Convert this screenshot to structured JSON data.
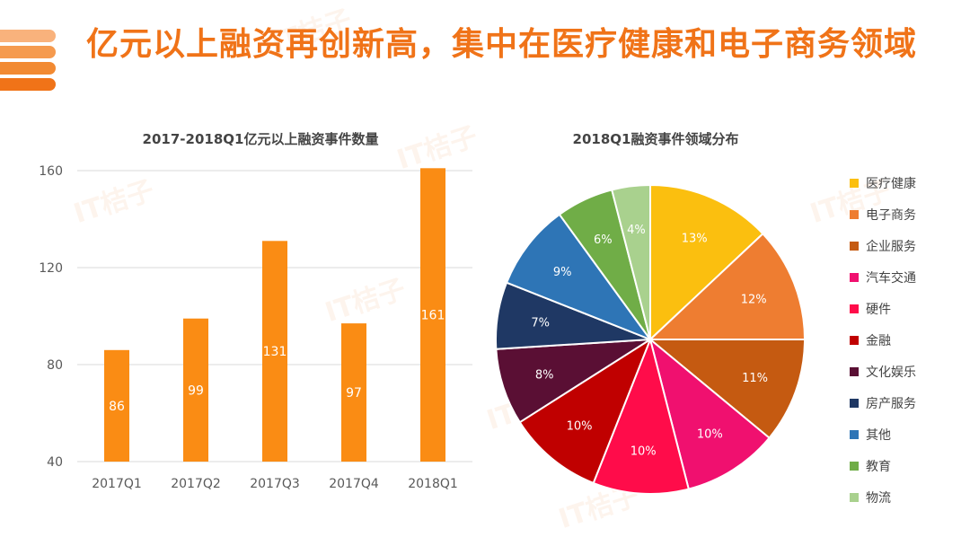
{
  "header": {
    "title": "亿元以上融资再创新高，集中在医疗健康和电子商务领域",
    "accent": "#f07318"
  },
  "watermark": "IT桔子",
  "chart_data": [
    {
      "type": "bar",
      "title": "2017-2018Q1亿元以上融资事件数量",
      "categories": [
        "2017Q1",
        "2017Q2",
        "2017Q3",
        "2017Q4",
        "2018Q1"
      ],
      "values": [
        86,
        99,
        131,
        97,
        161
      ],
      "ylim": [
        40,
        160
      ],
      "yticks": [
        40,
        80,
        120,
        160
      ],
      "grid": true,
      "bar_color": "#fa8c14"
    },
    {
      "type": "pie",
      "title": "2018Q1融资事件领域分布",
      "legend": "right",
      "slices": [
        {
          "label": "医疗健康",
          "value": 13,
          "display": "13%",
          "color": "#fbbf0f"
        },
        {
          "label": "电子商务",
          "value": 12,
          "display": "12%",
          "color": "#ee7d31"
        },
        {
          "label": "企业服务",
          "value": 11,
          "display": "11%",
          "color": "#c55a11"
        },
        {
          "label": "汽车交通",
          "value": 10,
          "display": "10%",
          "color": "#f0106f"
        },
        {
          "label": "硬件",
          "value": 10,
          "display": "10%",
          "color": "#ff0c4a"
        },
        {
          "label": "金融",
          "value": 10,
          "display": "10%",
          "color": "#c00000"
        },
        {
          "label": "文化娱乐",
          "value": 8,
          "display": "8%",
          "color": "#5a0f34"
        },
        {
          "label": "房产服务",
          "value": 7,
          "display": "7%",
          "color": "#1f3864"
        },
        {
          "label": "其他",
          "value": 9,
          "display": "9%",
          "color": "#2e75b6"
        },
        {
          "label": "教育",
          "value": 6,
          "display": "6%",
          "color": "#70ad47"
        },
        {
          "label": "物流",
          "value": 4,
          "display": "4%",
          "color": "#a9d18e"
        }
      ]
    }
  ]
}
